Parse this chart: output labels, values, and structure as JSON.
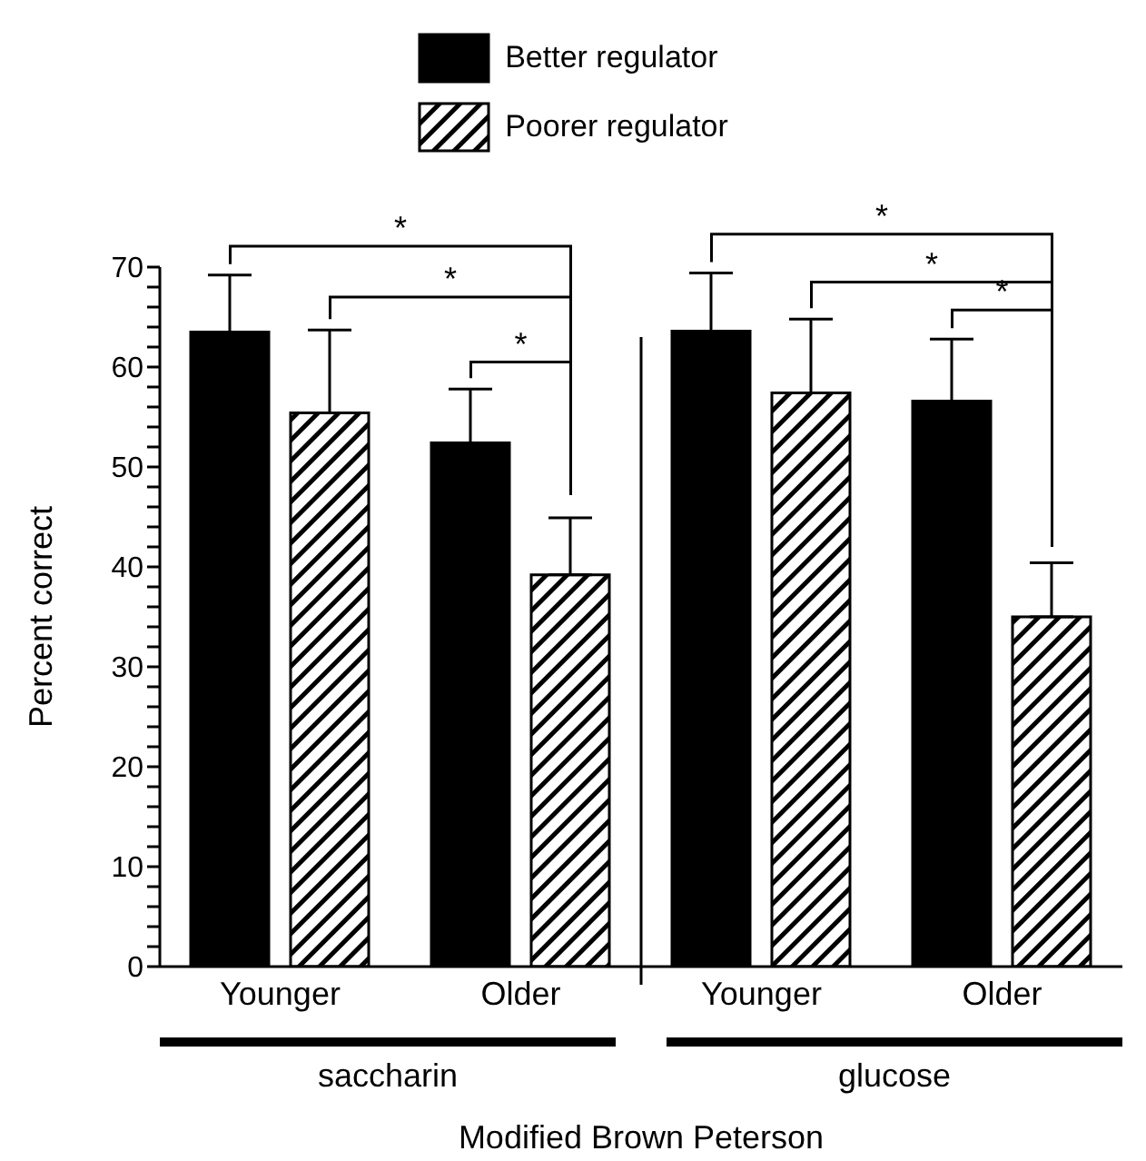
{
  "chart_data": {
    "type": "bar",
    "categories": [
      "Younger",
      "Older",
      "Younger",
      "Older"
    ],
    "xlabel": "Modified Brown Peterson",
    "ylabel": "Percent correct",
    "series": [
      {
        "name": "Better regulator",
        "color": "#000000",
        "values": [
          63.5,
          52.4,
          63.6,
          56.6
        ],
        "errors": [
          5.7,
          5.4,
          5.8,
          6.2
        ]
      },
      {
        "name": "Poorer regulator",
        "color": "#000000",
        "values": [
          55.4,
          39.2,
          57.4,
          35.0
        ],
        "errors": [
          8.3,
          5.7,
          7.4,
          5.4
        ]
      }
    ],
    "ylim": [
      0,
      70
    ],
    "yticks": [
      0,
      {
        "value": 2,
        "label": null
      },
      {
        "value": 4,
        "label": null
      },
      {
        "value": 6,
        "label": null
      },
      {
        "value": 8,
        "label": null
      },
      10,
      {
        "value": 12,
        "label": null
      },
      {
        "value": 14,
        "label": null
      },
      {
        "value": 16,
        "label": null
      },
      {
        "value": 18,
        "label": null
      },
      20,
      {
        "value": 22,
        "label": null
      },
      {
        "value": 24,
        "label": null
      },
      {
        "value": 26,
        "label": null
      },
      {
        "value": 28,
        "label": null
      },
      30,
      {
        "value": 32,
        "label": null
      },
      {
        "value": 34,
        "label": null
      },
      {
        "value": 36,
        "label": null
      },
      {
        "value": 38,
        "label": null
      },
      40,
      {
        "value": 42,
        "label": null
      },
      {
        "value": 44,
        "label": null
      },
      {
        "value": 46,
        "label": null
      },
      {
        "value": 48,
        "label": null
      },
      50,
      {
        "value": 52,
        "label": null
      },
      {
        "value": 54,
        "label": null
      },
      {
        "value": 56,
        "label": null
      },
      {
        "value": 58,
        "label": null
      },
      60,
      {
        "value": 62,
        "label": null
      },
      {
        "value": 64,
        "label": null
      },
      {
        "value": 66,
        "label": null
      },
      {
        "value": 68,
        "label": null
      },
      70
    ],
    "annotations": [
      "*",
      "*",
      "*",
      "*",
      "*",
      "*",
      "saccharin",
      "glucose"
    ],
    "legend": "top",
    "grid": false
  }
}
